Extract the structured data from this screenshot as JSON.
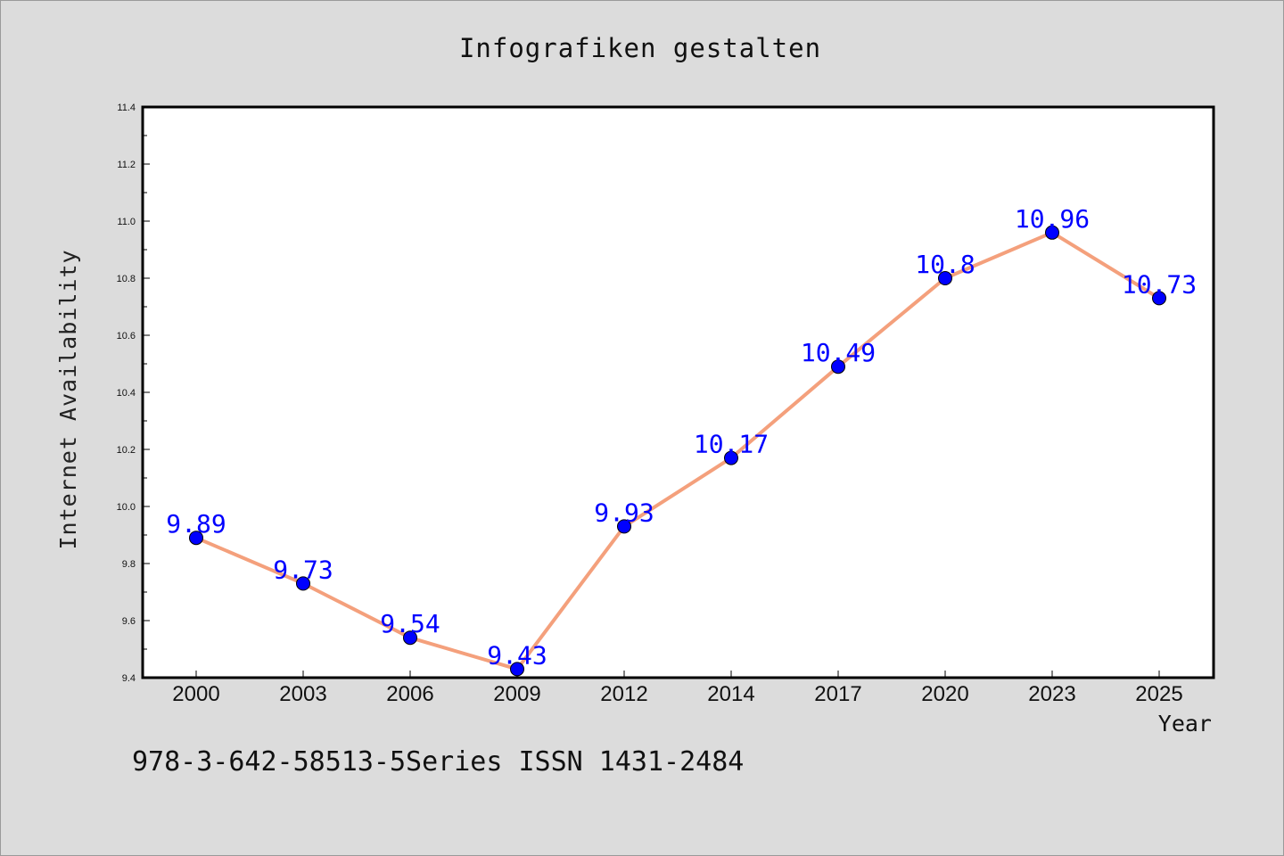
{
  "title": "Infografiken gestalten",
  "footer_text": "978-3-642-58513-5Series ISSN 1431-2484",
  "colors": {
    "background": "#dcdcdc",
    "plot_background": "#ffffff",
    "line": "#f4a07c",
    "marker": "#0000ff",
    "data_label": "#0000ff"
  },
  "chart_data": {
    "type": "line",
    "title": "Infografiken gestalten",
    "xlabel": "Year",
    "ylabel": "Internet Availability",
    "categories": [
      "2000",
      "2003",
      "2006",
      "2009",
      "2012",
      "2014",
      "2017",
      "2020",
      "2023",
      "2025"
    ],
    "series": [
      {
        "values": [
          9.89,
          9.73,
          9.54,
          9.43,
          9.93,
          10.17,
          10.49,
          10.8,
          10.96,
          10.73
        ],
        "labels": [
          "9.89",
          "9.73",
          "9.54",
          "9.43",
          "9.93",
          "10.17",
          "10.49",
          "10.8",
          "10.96",
          "10.73"
        ]
      }
    ],
    "ylim": [
      9.4,
      11.4
    ],
    "yticks": [
      "9.4",
      "9.6",
      "9.8",
      "10.0",
      "10.2",
      "10.4",
      "10.6",
      "10.8",
      "11.0",
      "11.2",
      "11.4"
    ],
    "grid": false,
    "legend": "none"
  }
}
